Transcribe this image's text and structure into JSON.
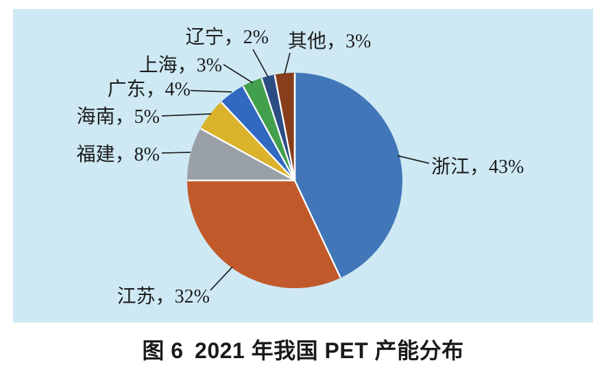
{
  "chart_data": {
    "type": "pie",
    "title": "图 6 2021 年我国 PET 产能分布",
    "background": "#CEE9F4",
    "legend_position": "none",
    "label_style": "callout",
    "segments": [
      {
        "key": "zhejiang",
        "name": "浙江",
        "value": 43,
        "label": "浙江，43%",
        "color": "#4177B8"
      },
      {
        "key": "jiangsu",
        "name": "江苏",
        "value": 32,
        "label": "江苏，32%",
        "color": "#C15A2B"
      },
      {
        "key": "fujian",
        "name": "福建",
        "value": 8,
        "label": "福建，8%",
        "color": "#9AA0A7"
      },
      {
        "key": "hainan",
        "name": "海南",
        "value": 5,
        "label": "海南，5%",
        "color": "#DAB22C"
      },
      {
        "key": "guangdong",
        "name": "广东",
        "value": 4,
        "label": "广东，4%",
        "color": "#3168C0"
      },
      {
        "key": "shanghai",
        "name": "上海",
        "value": 3,
        "label": "上海，3%",
        "color": "#42A04C"
      },
      {
        "key": "liaoning",
        "name": "辽宁",
        "value": 2,
        "label": "辽宁，2%",
        "color": "#2B4D84"
      },
      {
        "key": "qita",
        "name": "其他",
        "value": 3,
        "label": "其他，3%",
        "color": "#873E1B"
      }
    ]
  },
  "caption": "图 6 2021 年我国 PET 产能分布"
}
